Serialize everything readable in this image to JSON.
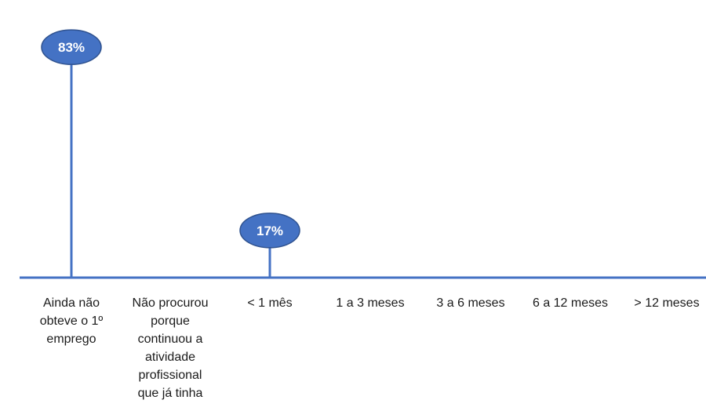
{
  "chart_data": {
    "type": "lollipop",
    "categories": [
      [
        "Ainda não",
        "obteve o 1º",
        "emprego"
      ],
      [
        "Não procurou",
        "porque",
        "continuou a",
        "atividade",
        "profissional",
        "que já tinha"
      ],
      [
        "< 1  mês"
      ],
      [
        "1  a  3 meses"
      ],
      [
        "3  a  6 meses"
      ],
      [
        "6  a 12 meses"
      ],
      [
        "> 12 meses"
      ]
    ],
    "values": [
      83,
      0,
      17,
      0,
      0,
      0,
      0
    ],
    "data_labels": [
      "83%",
      "",
      "17%",
      "",
      "",
      "",
      ""
    ],
    "ylim": [
      0,
      100
    ],
    "grid": false,
    "legend": "none",
    "colors": {
      "stem": "#4472c4",
      "marker_fill": "#4472c4",
      "marker_stroke": "#2f528f",
      "axis": "#4472c4"
    }
  }
}
